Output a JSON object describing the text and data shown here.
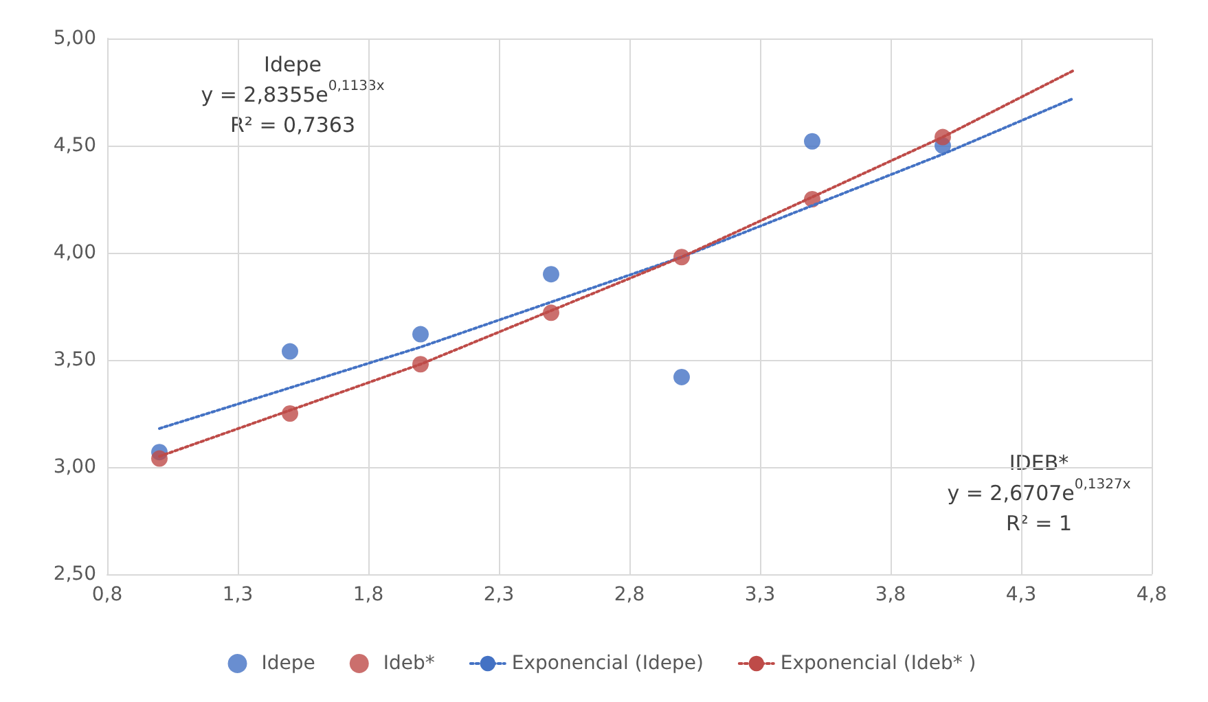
{
  "chart_data": {
    "type": "scatter",
    "xlim": [
      0.8,
      4.8
    ],
    "xticks": [
      {
        "value": 0.8,
        "label": "0,8"
      },
      {
        "value": 1.3,
        "label": "1,3"
      },
      {
        "value": 1.8,
        "label": "1,8"
      },
      {
        "value": 2.3,
        "label": "2,3"
      },
      {
        "value": 2.8,
        "label": "2,8"
      },
      {
        "value": 3.3,
        "label": "3,3"
      },
      {
        "value": 3.8,
        "label": "3,8"
      },
      {
        "value": 4.3,
        "label": "4,3"
      },
      {
        "value": 4.8,
        "label": "4,8"
      }
    ],
    "ylim": [
      2.5,
      5
    ],
    "yticks": [
      {
        "value": 2.5,
        "label": "2,50"
      },
      {
        "value": 3,
        "label": "3,00"
      },
      {
        "value": 3.5,
        "label": "3,50"
      },
      {
        "value": 4,
        "label": "4,00"
      },
      {
        "value": 4.5,
        "label": "4,50"
      },
      {
        "value": 5,
        "label": "5,00"
      }
    ],
    "grid": true,
    "legend": "bottom",
    "marker": "circle",
    "series": [
      {
        "name": "Idepe",
        "color": "#4472c4",
        "x": [
          1,
          1.5,
          2,
          2.5,
          3,
          3.5,
          4
        ],
        "values": [
          3.07,
          3.54,
          3.62,
          3.9,
          3.42,
          4.52,
          4.5
        ]
      },
      {
        "name": "Ideb*",
        "color": "#be4b48",
        "x": [
          1,
          1.5,
          2,
          2.5,
          3,
          3.5,
          4
        ],
        "values": [
          3.04,
          3.25,
          3.48,
          3.72,
          3.98,
          4.25,
          4.54
        ]
      },
      {
        "name": "Exponencial (Idepe)",
        "type": "line",
        "line_style": "dotted",
        "marker": "none",
        "color": "#4472c4",
        "x": [
          1,
          2,
          3,
          4,
          4.5
        ],
        "values": [
          3.18,
          3.56,
          3.98,
          4.46,
          4.72
        ]
      },
      {
        "name": "Exponencial (Ideb* )",
        "type": "line",
        "line_style": "dotted",
        "marker": "none",
        "color": "#be4b48",
        "x": [
          1,
          2,
          3,
          4,
          4.5
        ],
        "values": [
          3.05,
          3.48,
          3.98,
          4.54,
          4.85
        ]
      }
    ],
    "annotations": [
      "Idepe\ny = 2,8355e$^{0,1133x}$\nR² = 0,7363",
      "IDEB*\ny = 2,6707e$^{0,1327x}$\nR² = 1"
    ]
  }
}
